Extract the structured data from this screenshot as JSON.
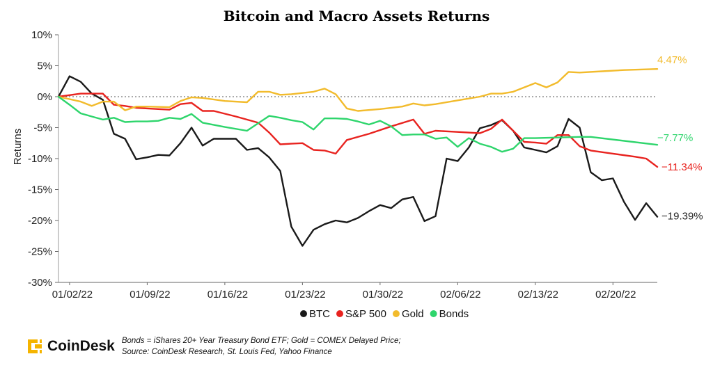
{
  "chart_data": {
    "type": "line",
    "title": "Bitcoin and Macro Assets Returns",
    "ylabel": "Returns",
    "xlabel": "",
    "ylim": [
      -30,
      10
    ],
    "yticks": [
      "10%",
      "5%",
      "0%",
      "-5%",
      "-10%",
      "-15%",
      "-20%",
      "-25%",
      "-30%"
    ],
    "ytick_values": [
      10,
      5,
      0,
      -5,
      -10,
      -15,
      -20,
      -25,
      -30
    ],
    "xticks": [
      {
        "label": "01/02/22",
        "day": 2
      },
      {
        "label": "01/09/22",
        "day": 9
      },
      {
        "label": "01/16/22",
        "day": 16
      },
      {
        "label": "01/23/22",
        "day": 23
      },
      {
        "label": "01/30/22",
        "day": 30
      },
      {
        "label": "02/06/22",
        "day": 37
      },
      {
        "label": "02/13/22",
        "day": 44
      },
      {
        "label": "02/20/22",
        "day": 51
      }
    ],
    "x_start_day": 1,
    "x_end_day": 53,
    "zero_line": true,
    "legend_position": "bottom",
    "series": [
      {
        "name": "BTC",
        "color": "#1a1a1a",
        "end_label": "−19.39%",
        "points": [
          [
            1,
            0
          ],
          [
            2,
            3.3
          ],
          [
            3,
            2.4
          ],
          [
            4,
            0.5
          ],
          [
            5,
            -0.5
          ],
          [
            6,
            -6
          ],
          [
            7,
            -6.8
          ],
          [
            8,
            -10.1
          ],
          [
            9,
            -9.8
          ],
          [
            10,
            -9.4
          ],
          [
            11,
            -9.5
          ],
          [
            12,
            -7.5
          ],
          [
            13,
            -5
          ],
          [
            14,
            -7.9
          ],
          [
            15,
            -6.8
          ],
          [
            16,
            -6.8
          ],
          [
            17,
            -6.8
          ],
          [
            18,
            -8.6
          ],
          [
            19,
            -8.3
          ],
          [
            20,
            -9.8
          ],
          [
            21,
            -12
          ],
          [
            22,
            -21
          ],
          [
            23,
            -24.1
          ],
          [
            24,
            -21.5
          ],
          [
            25,
            -20.6
          ],
          [
            26,
            -20
          ],
          [
            27,
            -20.3
          ],
          [
            28,
            -19.6
          ],
          [
            29,
            -18.5
          ],
          [
            30,
            -17.5
          ],
          [
            31,
            -18
          ],
          [
            32,
            -16.6
          ],
          [
            33,
            -16.2
          ],
          [
            34,
            -20.1
          ],
          [
            35,
            -19.3
          ],
          [
            36,
            -10
          ],
          [
            37,
            -10.4
          ],
          [
            38,
            -8.2
          ],
          [
            39,
            -5.1
          ],
          [
            40,
            -4.6
          ],
          [
            41,
            -3.8
          ],
          [
            42,
            -5.5
          ],
          [
            43,
            -8.2
          ],
          [
            44,
            -8.6
          ],
          [
            45,
            -9
          ],
          [
            46,
            -8
          ],
          [
            47,
            -3.6
          ],
          [
            48,
            -5
          ],
          [
            49,
            -12.2
          ],
          [
            50,
            -13.5
          ],
          [
            51,
            -13.2
          ],
          [
            52,
            -17
          ],
          [
            53,
            -19.9
          ],
          [
            54,
            -17.2
          ],
          [
            55,
            -19.39
          ]
        ]
      },
      {
        "name": "S&P 500",
        "color": "#e8231f",
        "end_label": "−11.34%",
        "points": [
          [
            1,
            0
          ],
          [
            3,
            0.5
          ],
          [
            5,
            0.5
          ],
          [
            6,
            -1.3
          ],
          [
            7,
            -1.5
          ],
          [
            8,
            -1.8
          ],
          [
            9,
            -1.9
          ],
          [
            10,
            -2
          ],
          [
            11,
            -2.1
          ],
          [
            12,
            -1.2
          ],
          [
            13,
            -1
          ],
          [
            14,
            -2.3
          ],
          [
            15,
            -2.3
          ],
          [
            17,
            -3.2
          ],
          [
            19,
            -4.2
          ],
          [
            20,
            -5.8
          ],
          [
            21,
            -7.7
          ],
          [
            22,
            -7.6
          ],
          [
            23,
            -7.5
          ],
          [
            24,
            -8.6
          ],
          [
            25,
            -8.7
          ],
          [
            26,
            -9.2
          ],
          [
            27,
            -7
          ],
          [
            29,
            -6
          ],
          [
            31,
            -4.8
          ],
          [
            33,
            -3.7
          ],
          [
            34,
            -6
          ],
          [
            35,
            -5.5
          ],
          [
            37,
            -5.7
          ],
          [
            39,
            -5.9
          ],
          [
            40,
            -5.2
          ],
          [
            41,
            -3.7
          ],
          [
            42,
            -5.5
          ],
          [
            43,
            -7.3
          ],
          [
            44,
            -7.4
          ],
          [
            45,
            -7.6
          ],
          [
            46,
            -6.2
          ],
          [
            47,
            -6.2
          ],
          [
            48,
            -8
          ],
          [
            49,
            -8.7
          ],
          [
            51,
            -9.2
          ],
          [
            53,
            -9.7
          ],
          [
            54,
            -10
          ],
          [
            55,
            -11.34
          ]
        ]
      },
      {
        "name": "Gold",
        "color": "#f2bb2c",
        "end_label": "4.47%",
        "points": [
          [
            1,
            0
          ],
          [
            3,
            -0.8
          ],
          [
            4,
            -1.5
          ],
          [
            5,
            -0.8
          ],
          [
            6,
            -0.8
          ],
          [
            7,
            -2.2
          ],
          [
            8,
            -1.6
          ],
          [
            9,
            -1.6
          ],
          [
            11,
            -1.7
          ],
          [
            12,
            -0.7
          ],
          [
            13,
            -0.1
          ],
          [
            14,
            -0.2
          ],
          [
            16,
            -0.7
          ],
          [
            18,
            -0.9
          ],
          [
            19,
            0.8
          ],
          [
            20,
            0.8
          ],
          [
            21,
            0.3
          ],
          [
            22,
            0.4
          ],
          [
            24,
            0.8
          ],
          [
            25,
            1.3
          ],
          [
            26,
            0.4
          ],
          [
            27,
            -1.9
          ],
          [
            28,
            -2.3
          ],
          [
            30,
            -2
          ],
          [
            32,
            -1.6
          ],
          [
            33,
            -1.1
          ],
          [
            34,
            -1.4
          ],
          [
            35,
            -1.2
          ],
          [
            37,
            -0.6
          ],
          [
            39,
            0
          ],
          [
            40,
            0.5
          ],
          [
            41,
            0.5
          ],
          [
            42,
            0.8
          ],
          [
            43,
            1.5
          ],
          [
            44,
            2.2
          ],
          [
            45,
            1.5
          ],
          [
            46,
            2.3
          ],
          [
            47,
            4
          ],
          [
            48,
            3.9
          ],
          [
            50,
            4.1
          ],
          [
            52,
            4.3
          ],
          [
            55,
            4.47
          ]
        ]
      },
      {
        "name": "Bonds",
        "color": "#2ed56c",
        "end_label": "−7.77%",
        "points": [
          [
            1,
            0
          ],
          [
            2,
            -1.3
          ],
          [
            3,
            -2.7
          ],
          [
            4,
            -3.2
          ],
          [
            5,
            -3.7
          ],
          [
            6,
            -3.4
          ],
          [
            7,
            -4.1
          ],
          [
            8,
            -4
          ],
          [
            9,
            -4
          ],
          [
            10,
            -3.9
          ],
          [
            11,
            -3.4
          ],
          [
            12,
            -3.6
          ],
          [
            13,
            -2.8
          ],
          [
            14,
            -4.2
          ],
          [
            16,
            -4.9
          ],
          [
            18,
            -5.5
          ],
          [
            19,
            -4.3
          ],
          [
            20,
            -3.1
          ],
          [
            21,
            -3.4
          ],
          [
            22,
            -3.8
          ],
          [
            23,
            -4.1
          ],
          [
            24,
            -5.3
          ],
          [
            25,
            -3.5
          ],
          [
            26,
            -3.5
          ],
          [
            27,
            -3.6
          ],
          [
            28,
            -4
          ],
          [
            29,
            -4.5
          ],
          [
            30,
            -3.9
          ],
          [
            31,
            -4.8
          ],
          [
            32,
            -6.2
          ],
          [
            33,
            -6.1
          ],
          [
            34,
            -6.1
          ],
          [
            35,
            -6.8
          ],
          [
            36,
            -6.6
          ],
          [
            37,
            -8.1
          ],
          [
            38,
            -6.7
          ],
          [
            39,
            -7.6
          ],
          [
            40,
            -8.1
          ],
          [
            41,
            -8.9
          ],
          [
            42,
            -8.4
          ],
          [
            43,
            -6.7
          ],
          [
            44,
            -6.7
          ],
          [
            46,
            -6.6
          ],
          [
            48,
            -6.5
          ],
          [
            49,
            -6.5
          ],
          [
            55,
            -7.77
          ]
        ]
      }
    ]
  },
  "footer": {
    "brand": "CoinDesk",
    "note_line1": "Bonds = iShares 20+ Year Treasury Bond ETF; Gold = COMEX Delayed Price;",
    "note_line2": "Source: CoinDesk Research, St. Louis Fed, Yahoo Finance",
    "brand_color": "#f5b400"
  }
}
